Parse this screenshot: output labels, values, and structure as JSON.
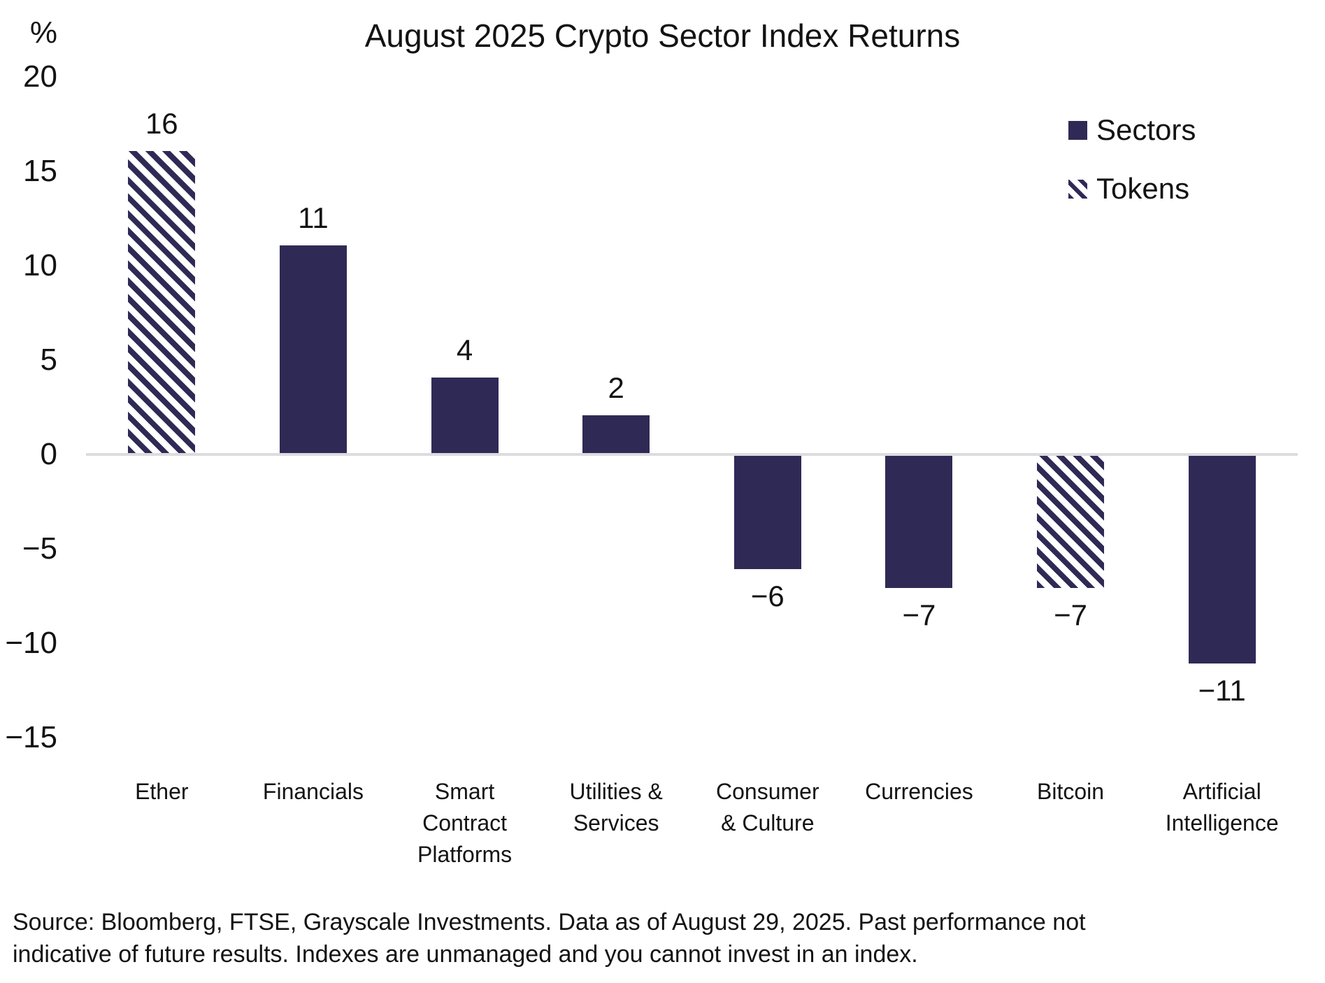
{
  "chart_data": {
    "type": "bar",
    "title": "August 2025 Crypto Sector Index Returns",
    "ylabel": "%",
    "ylim": [
      -15,
      20
    ],
    "y_ticks": [
      20,
      15,
      10,
      5,
      0,
      -5,
      -10,
      -15
    ],
    "y_tick_labels": [
      "20",
      "15",
      "10",
      "5",
      "0",
      "−5",
      "−10",
      "−15"
    ],
    "grid": false,
    "legend_position": "top-right",
    "categories": [
      "Ether",
      "Financials",
      "Smart Contract Platforms",
      "Utilities & Services",
      "Consumer & Culture",
      "Currencies",
      "Bitcoin",
      "Artificial Intelligence"
    ],
    "category_lines": [
      [
        "Ether"
      ],
      [
        "Financials"
      ],
      [
        "Smart",
        "Contract",
        "Platforms"
      ],
      [
        "Utilities &",
        "Services"
      ],
      [
        "Consumer",
        "& Culture"
      ],
      [
        "Currencies"
      ],
      [
        "Bitcoin"
      ],
      [
        "Artificial",
        "Intelligence"
      ]
    ],
    "values": [
      16,
      11,
      4,
      2,
      -6,
      -7,
      -7,
      -11
    ],
    "value_labels": [
      "16",
      "11",
      "4",
      "2",
      "−6",
      "−7",
      "−7",
      "−11"
    ],
    "bar_styles": [
      "hatched",
      "solid",
      "solid",
      "solid",
      "solid",
      "solid",
      "hatched",
      "solid"
    ],
    "series_styles": {
      "solid": "Sectors",
      "hatched": "Tokens"
    }
  },
  "legend": {
    "items": [
      {
        "label": "Sectors",
        "style": "solid"
      },
      {
        "label": "Tokens",
        "style": "hatched"
      }
    ]
  },
  "colors": {
    "bar_navy": "#2f2a55",
    "axis_line": "#dcdce0",
    "text": "#131313",
    "background": "#ffffff"
  },
  "source_note": {
    "line1": "Source: Bloomberg, FTSE, Grayscale Investments. Data as of August 29, 2025. Past performance not",
    "line2": "indicative of future results. Indexes are unmanaged and you cannot invest in an index."
  }
}
